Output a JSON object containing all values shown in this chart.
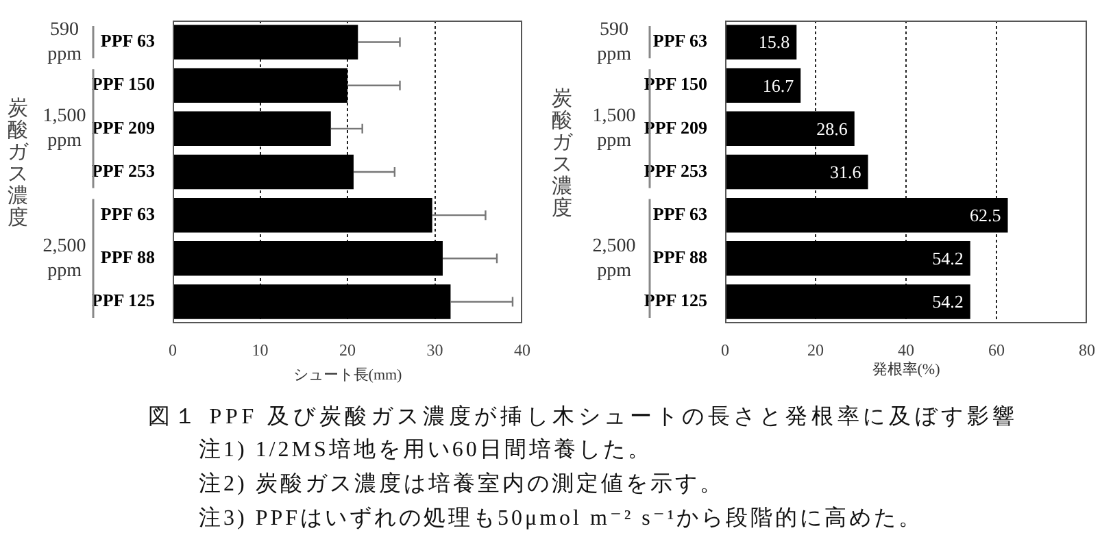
{
  "chart_data": [
    {
      "type": "bar",
      "orientation": "horizontal",
      "categories": [
        "PPF 63",
        "PPF 150",
        "PPF 209",
        "PPF 253",
        "PPF 63",
        "PPF 88",
        "PPF 125"
      ],
      "values": [
        21.2,
        20.0,
        18.1,
        20.7,
        29.7,
        30.9,
        31.8
      ],
      "errors": [
        [
          21.2,
          26.0
        ],
        [
          20.0,
          26.0
        ],
        [
          18.1,
          21.7
        ],
        [
          20.7,
          25.4
        ],
        [
          29.7,
          35.8
        ],
        [
          30.9,
          37.1
        ],
        [
          31.8,
          38.9
        ]
      ],
      "color": "#000000",
      "xlabel": "シュート長(mm)",
      "ylabel": "炭酸ガス濃度",
      "xlim": [
        0,
        40
      ],
      "xticks": [
        0,
        10,
        20,
        30,
        40
      ],
      "grid": "x",
      "annotations": [
        "590 ppm",
        "1,500 ppm",
        "2,500 ppm",
        "図１ PPF 及び炭酸ガス濃度が挿し木シュートの長さと発根率に及ぼす影響",
        "注1) 1/2MS培地を用い60日間培養した。",
        "注2) 炭酸ガス濃度は培養室内の測定値を示す。",
        "注3) PPFはいずれの処理も50μmol m⁻² s⁻¹から段階的に高めた。"
      ]
    },
    {
      "type": "bar",
      "orientation": "horizontal",
      "categories": [
        "PPF 63",
        "PPF 150",
        "PPF 209",
        "PPF 253",
        "PPF 63",
        "PPF 88",
        "PPF 125"
      ],
      "values": [
        15.8,
        16.7,
        28.6,
        31.6,
        62.5,
        54.2,
        54.2
      ],
      "data_labels": true,
      "color": "#000000",
      "xlabel": "発根率(%)",
      "ylabel": "炭酸ガス濃度",
      "xlim": [
        0,
        80
      ],
      "xticks": [
        0,
        20,
        40,
        60,
        80
      ],
      "grid": "x",
      "annotations": [
        "590 ppm",
        "1,500 ppm",
        "2,500 ppm"
      ]
    }
  ]
}
